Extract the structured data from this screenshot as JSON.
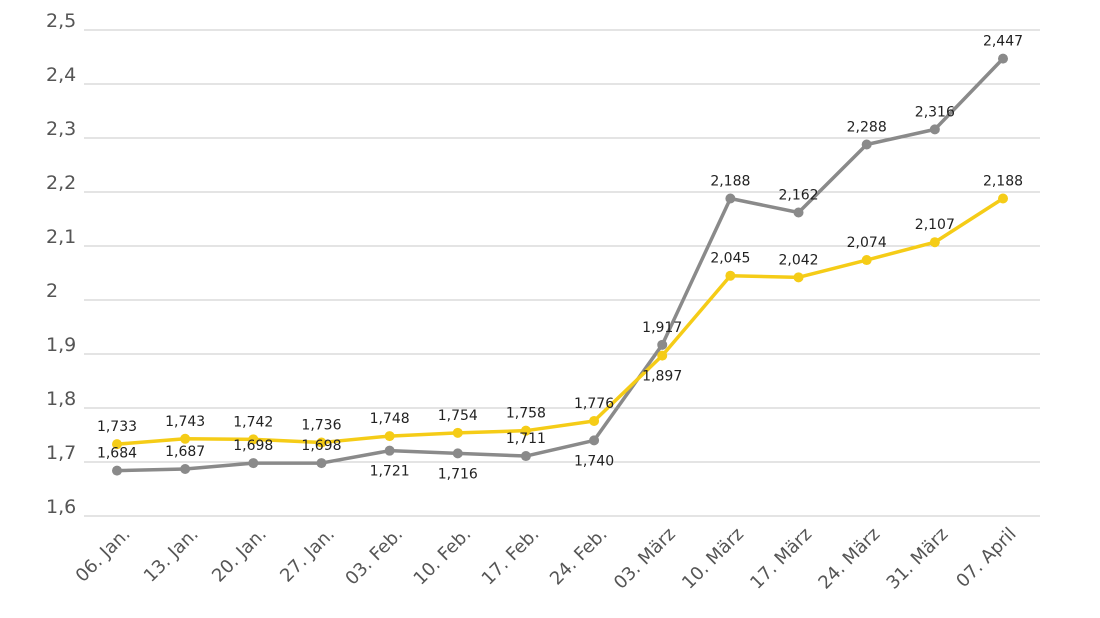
{
  "chart_data": {
    "type": "line",
    "categories": [
      "06. Jan.",
      "13. Jan.",
      "20. Jan.",
      "27. Jan.",
      "03. Feb.",
      "10. Feb.",
      "17. Feb.",
      "24. Feb.",
      "03. März",
      "10. März",
      "17. März",
      "24. März",
      "31. März",
      "07. April"
    ],
    "ylim": [
      1.6,
      2.5
    ],
    "yticks": [
      1.6,
      1.7,
      1.8,
      1.9,
      2.0,
      2.1,
      2.2,
      2.3,
      2.4,
      2.5
    ],
    "ytick_labels": [
      "1,6",
      "1,7",
      "1,8",
      "1,9",
      "2",
      "2,1",
      "2,2",
      "2,3",
      "2,4",
      "2,5"
    ],
    "grid": true,
    "title": "",
    "xlabel": "",
    "ylabel": "",
    "series": [
      {
        "color": "#8a8a8a",
        "values": [
          1.684,
          1.687,
          1.698,
          1.698,
          1.721,
          1.716,
          1.711,
          1.74,
          1.917,
          2.188,
          2.162,
          2.288,
          2.316,
          2.447
        ],
        "labels": [
          "1,684",
          "1,687",
          "1,698",
          "1,698",
          "1,721",
          "1,716",
          "1,711",
          "1,740",
          "1,917",
          "2,188",
          "2,162",
          "2,288",
          "2,316",
          "2,447"
        ]
      },
      {
        "color": "#f5cc17",
        "values": [
          1.733,
          1.743,
          1.742,
          1.736,
          1.748,
          1.754,
          1.758,
          1.776,
          1.897,
          2.045,
          2.042,
          2.074,
          2.107,
          2.188
        ],
        "labels": [
          "1,733",
          "1,743",
          "1,742",
          "1,736",
          "1,748",
          "1,754",
          "1,758",
          "1,776",
          "1,897",
          "2,045",
          "2,042",
          "2,074",
          "2,107",
          "2,188"
        ]
      }
    ]
  }
}
